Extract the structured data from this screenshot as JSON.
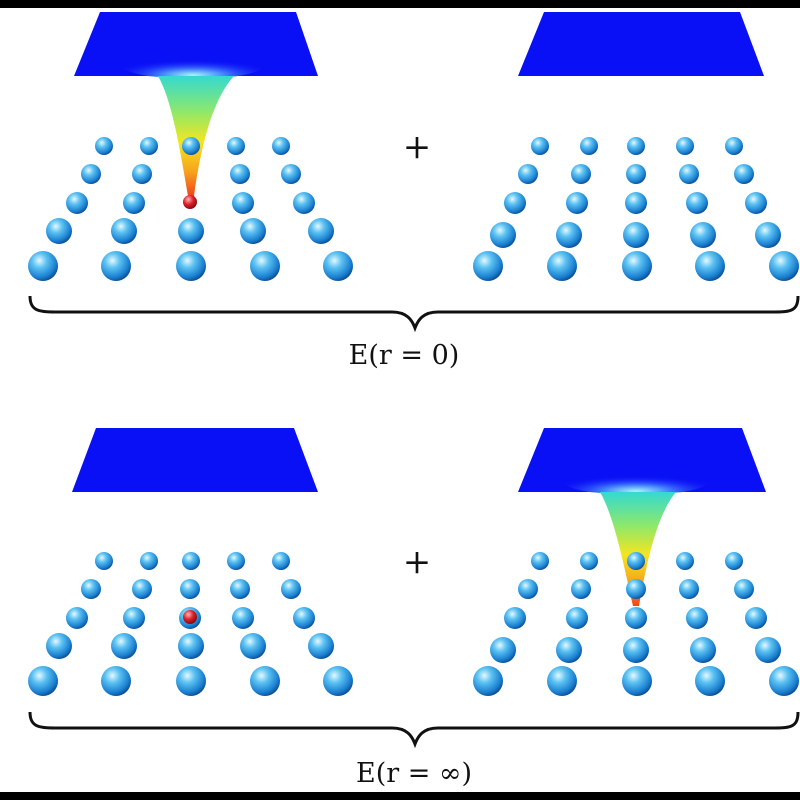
{
  "diagram": {
    "operator": "+",
    "equations": [
      {
        "id": "top",
        "label": "E(r = 0)"
      },
      {
        "id": "bottom",
        "label": "E(r = ∞)"
      }
    ],
    "colors": {
      "atom": "#1b8fe0",
      "atom_highlight": "#bfeaff",
      "adatom": "#d4141d",
      "surface": "#0a10f5",
      "tip_top": "#2bd4d4",
      "tip_mid": "#f7e61d",
      "tip_end": "#f25a1c",
      "brace": "#111111",
      "frame": "#000000"
    }
  }
}
